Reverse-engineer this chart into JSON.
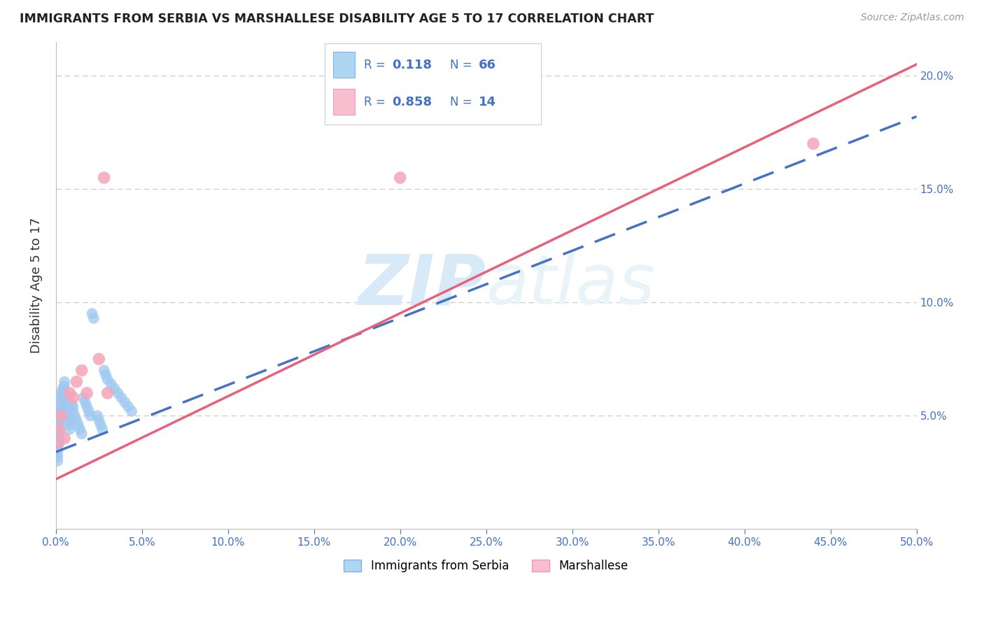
{
  "title": "IMMIGRANTS FROM SERBIA VS MARSHALLESE DISABILITY AGE 5 TO 17 CORRELATION CHART",
  "source": "Source: ZipAtlas.com",
  "ylabel": "Disability Age 5 to 17",
  "xlim": [
    0.0,
    0.5
  ],
  "ylim": [
    0.0,
    0.215
  ],
  "xticks": [
    0.0,
    0.05,
    0.1,
    0.15,
    0.2,
    0.25,
    0.3,
    0.35,
    0.4,
    0.45,
    0.5
  ],
  "yticks": [
    0.0,
    0.05,
    0.1,
    0.15,
    0.2
  ],
  "xticklabels": [
    "0.0%",
    "5.0%",
    "10.0%",
    "15.0%",
    "20.0%",
    "25.0%",
    "30.0%",
    "35.0%",
    "40.0%",
    "45.0%",
    "50.0%"
  ],
  "right_yticklabels": [
    "",
    "5.0%",
    "10.0%",
    "15.0%",
    "20.0%"
  ],
  "serbia_dot_color": "#9EC8F0",
  "serbia_dot_edge": "none",
  "marshallese_dot_color": "#F4A5B8",
  "marshallese_dot_edge": "none",
  "serbia_line_color": "#4472C4",
  "marshallese_line_color": "#E8607A",
  "grid_color": "#CCCCCC",
  "tick_label_color": "#4472C4",
  "title_color": "#222222",
  "source_color": "#999999",
  "ylabel_color": "#333333",
  "watermark_text": "ZIPAtlas",
  "watermark_color": "#D8EAF8",
  "serbia_R": 0.118,
  "serbia_N": 66,
  "marshallese_R": 0.858,
  "marshallese_N": 14,
  "serbia_x": [
    0.001,
    0.001,
    0.001,
    0.001,
    0.001,
    0.001,
    0.001,
    0.001,
    0.001,
    0.001,
    0.002,
    0.002,
    0.002,
    0.002,
    0.002,
    0.002,
    0.002,
    0.002,
    0.003,
    0.003,
    0.003,
    0.003,
    0.003,
    0.003,
    0.004,
    0.004,
    0.004,
    0.005,
    0.005,
    0.005,
    0.005,
    0.006,
    0.006,
    0.007,
    0.007,
    0.008,
    0.008,
    0.009,
    0.01,
    0.01,
    0.011,
    0.012,
    0.013,
    0.014,
    0.015,
    0.016,
    0.017,
    0.018,
    0.019,
    0.02,
    0.021,
    0.022,
    0.024,
    0.025,
    0.026,
    0.027,
    0.028,
    0.029,
    0.03,
    0.032,
    0.034,
    0.036,
    0.038,
    0.04,
    0.042,
    0.044
  ],
  "serbia_y": [
    0.048,
    0.046,
    0.044,
    0.042,
    0.04,
    0.038,
    0.036,
    0.034,
    0.032,
    0.03,
    0.052,
    0.05,
    0.048,
    0.046,
    0.044,
    0.042,
    0.04,
    0.038,
    0.06,
    0.058,
    0.056,
    0.054,
    0.052,
    0.05,
    0.062,
    0.06,
    0.058,
    0.065,
    0.063,
    0.061,
    0.059,
    0.055,
    0.053,
    0.05,
    0.048,
    0.046,
    0.044,
    0.055,
    0.054,
    0.052,
    0.05,
    0.048,
    0.046,
    0.044,
    0.042,
    0.058,
    0.056,
    0.054,
    0.052,
    0.05,
    0.095,
    0.093,
    0.05,
    0.048,
    0.046,
    0.044,
    0.07,
    0.068,
    0.066,
    0.064,
    0.062,
    0.06,
    0.058,
    0.056,
    0.054,
    0.052
  ],
  "marshallese_x": [
    0.001,
    0.002,
    0.003,
    0.005,
    0.008,
    0.01,
    0.012,
    0.015,
    0.018,
    0.025,
    0.03,
    0.2,
    0.44,
    0.028
  ],
  "marshallese_y": [
    0.038,
    0.044,
    0.05,
    0.04,
    0.06,
    0.058,
    0.065,
    0.07,
    0.06,
    0.075,
    0.06,
    0.155,
    0.17,
    0.155
  ],
  "serbia_line_x0": 0.0,
  "serbia_line_y0": 0.034,
  "serbia_line_x1": 0.5,
  "serbia_line_y1": 0.182,
  "marsh_line_x0": 0.0,
  "marsh_line_y0": 0.022,
  "marsh_line_x1": 0.5,
  "marsh_line_y1": 0.205
}
